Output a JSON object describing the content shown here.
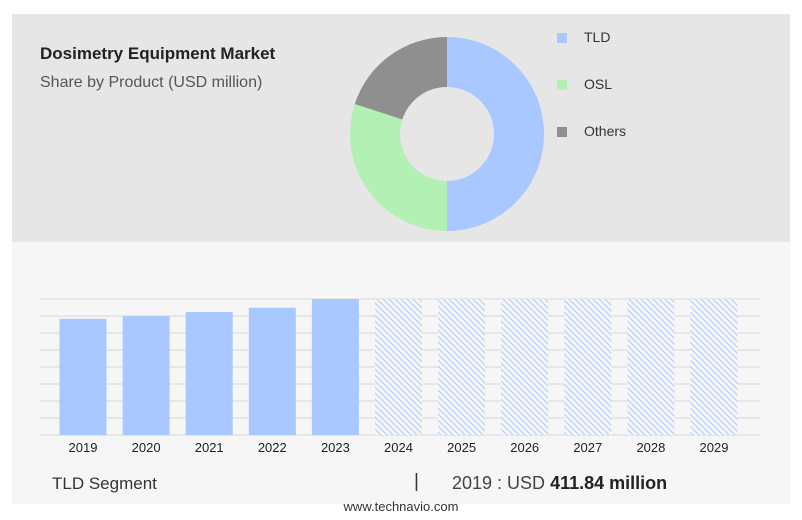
{
  "header": {
    "title": "Dosimetry Equipment Market",
    "subtitle": "Share by Product (USD million)"
  },
  "chart_data": [
    {
      "type": "pie",
      "title": "Dosimetry Equipment Market",
      "subtitle": "Share by Product (USD million)",
      "legend_position": "right",
      "slices": [
        {
          "label": "TLD",
          "share": 50,
          "color": "#a8c8ff"
        },
        {
          "label": "OSL",
          "share": 30,
          "color": "#b3f0b3"
        },
        {
          "label": "Others",
          "share": 20,
          "color": "#8f8f8f"
        }
      ]
    },
    {
      "type": "bar",
      "series_label": "TLD Segment",
      "categories": [
        "2019",
        "2020",
        "2021",
        "2022",
        "2023",
        "2024",
        "2025",
        "2026",
        "2027",
        "2028",
        "2029"
      ],
      "values": [
        411.84,
        421,
        436,
        451,
        482,
        null,
        null,
        null,
        null,
        null,
        null
      ],
      "forecast_from": "2024",
      "ylim": [
        0,
        482
      ],
      "grid": true,
      "bar_color": "#a8c8ff",
      "forecast_color": "#b8d0f5"
    }
  ],
  "footer": {
    "segment_label": "TLD Segment",
    "divider": "|",
    "value_prefix": "2019 : USD",
    "value_highlight": "411.84 million",
    "source": "www.technavio.com"
  }
}
